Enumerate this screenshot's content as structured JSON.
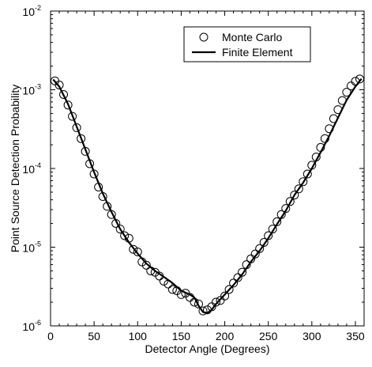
{
  "chart_data": {
    "type": "scatter",
    "xlabel": "Detector Angle (Degrees)",
    "ylabel": "Point Source Detection Probability",
    "xlim": [
      0,
      360
    ],
    "ylim": [
      1e-06,
      0.01
    ],
    "yscale": "log",
    "x_ticks": [
      0,
      50,
      100,
      150,
      200,
      250,
      300,
      350
    ],
    "y_ticks": [
      {
        "value": 1e-06,
        "base": "10",
        "exp": "-6"
      },
      {
        "value": 1e-05,
        "base": "10",
        "exp": "-5"
      },
      {
        "value": 0.0001,
        "base": "10",
        "exp": "-4"
      },
      {
        "value": 0.001,
        "base": "10",
        "exp": "-3"
      },
      {
        "value": 0.01,
        "base": "10",
        "exp": "-2"
      }
    ],
    "grid": false,
    "legend_position": "top-right",
    "series": [
      {
        "name": "Monte Carlo",
        "kind": "markers",
        "marker": "open-circle",
        "x": [
          5,
          10,
          15,
          20,
          25,
          30,
          35,
          40,
          45,
          50,
          55,
          60,
          65,
          70,
          75,
          80,
          85,
          90,
          95,
          100,
          105,
          110,
          115,
          120,
          125,
          130,
          135,
          140,
          145,
          150,
          155,
          160,
          165,
          170,
          175,
          180,
          185,
          190,
          195,
          200,
          205,
          210,
          215,
          220,
          225,
          230,
          235,
          240,
          245,
          250,
          255,
          260,
          265,
          270,
          275,
          280,
          285,
          290,
          295,
          300,
          305,
          310,
          315,
          320,
          325,
          330,
          335,
          340,
          345,
          350,
          355
        ],
        "y": [
          0.0013,
          0.00115,
          0.00087,
          0.00064,
          0.00046,
          0.00033,
          0.00024,
          0.000165,
          0.000115,
          8.5e-05,
          5.8e-05,
          4.4e-05,
          3.3e-05,
          2.6e-05,
          2e-05,
          1.7e-05,
          1.4e-05,
          1.3e-05,
          9.4e-06,
          8.7e-06,
          6.5e-06,
          5.9e-06,
          5e-06,
          4.8e-06,
          4.3e-06,
          3.7e-06,
          3.4e-06,
          2.9e-06,
          2.8e-06,
          2.5e-06,
          2.6e-06,
          2.3e-06,
          2e-06,
          1.9e-06,
          1.55e-06,
          1.6e-06,
          1.75e-06,
          2e-06,
          2.1e-06,
          2.4e-06,
          2.9e-06,
          3.5e-06,
          4.1e-06,
          4.8e-06,
          6e-06,
          7.1e-06,
          8.2e-06,
          9.6e-06,
          1.15e-05,
          1.4e-05,
          1.7e-05,
          2.1e-05,
          2.6e-05,
          3.1e-05,
          3.8e-05,
          4.6e-05,
          5.5e-05,
          6.8e-05,
          8.5e-05,
          0.00011,
          0.00014,
          0.000185,
          0.00024,
          0.00032,
          0.00043,
          0.00056,
          0.00073,
          0.00093,
          0.00112,
          0.00128,
          0.00137
        ]
      },
      {
        "name": "Finite Element",
        "kind": "line",
        "x": [
          3,
          10,
          20,
          30,
          40,
          50,
          60,
          70,
          80,
          90,
          100,
          110,
          120,
          130,
          140,
          150,
          160,
          165,
          170,
          175,
          180,
          185,
          190,
          200,
          210,
          220,
          230,
          240,
          250,
          260,
          270,
          280,
          290,
          300,
          310,
          320,
          330,
          340,
          350,
          357
        ],
        "y": [
          0.00135,
          0.0011,
          0.00066,
          0.00034,
          0.000175,
          9e-05,
          4.8e-05,
          2.8e-05,
          1.7e-05,
          1.15e-05,
          8.3e-06,
          6.2e-06,
          5e-06,
          4.2e-06,
          3.5e-06,
          2.8e-06,
          2.5e-06,
          2.3e-06,
          1.8e-06,
          1.5e-06,
          1.45e-06,
          1.6e-06,
          1.9e-06,
          2.5e-06,
          3.3e-06,
          4.5e-06,
          6.5e-06,
          9e-06,
          1.3e-05,
          1.95e-05,
          2.9e-05,
          4.6e-05,
          6.6e-05,
          0.0001,
          0.00016,
          0.00026,
          0.00044,
          0.00074,
          0.0011,
          0.00138
        ]
      }
    ]
  }
}
